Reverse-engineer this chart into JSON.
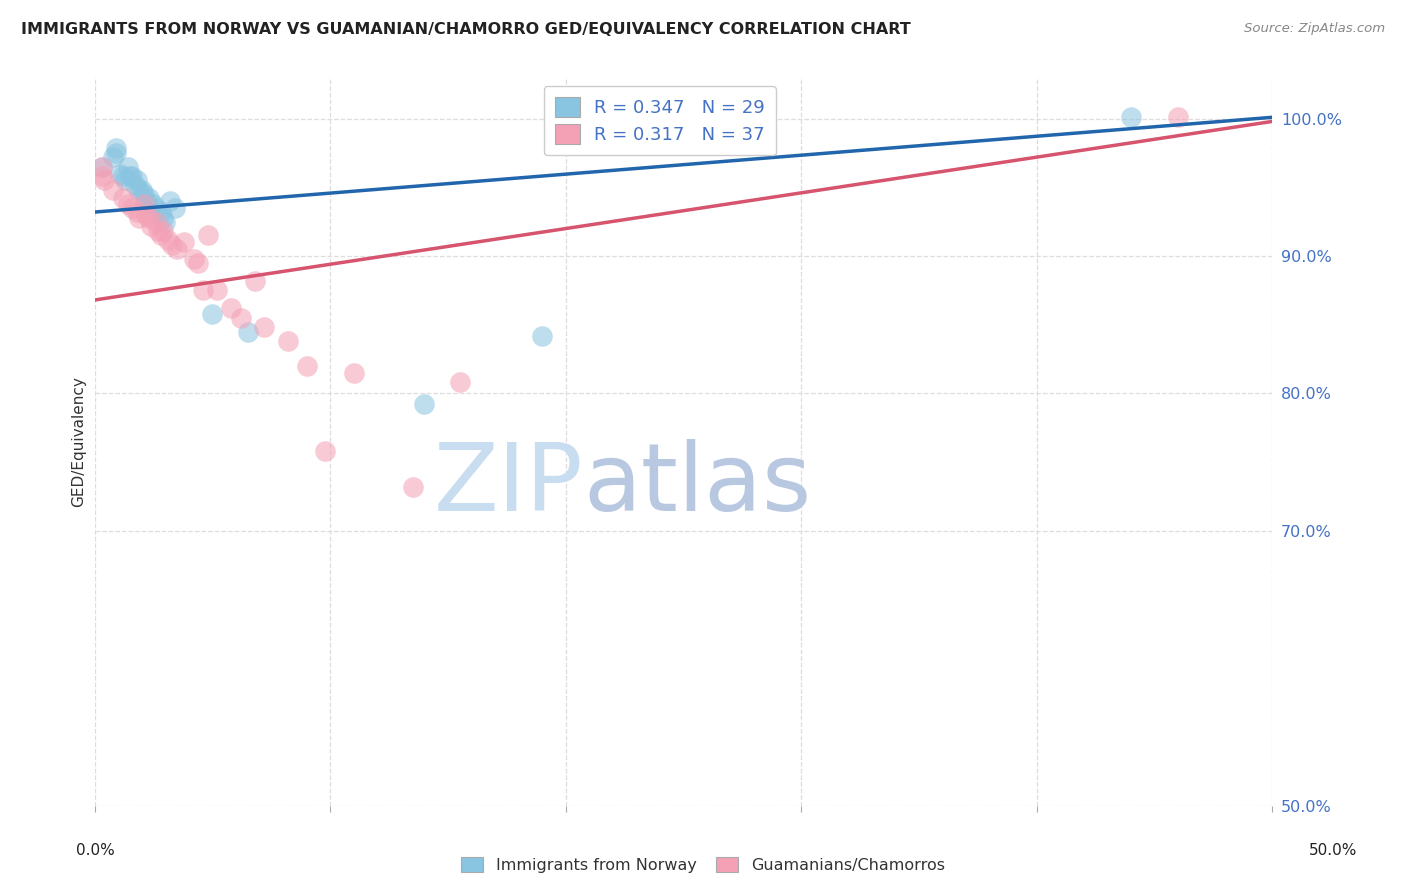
{
  "title": "IMMIGRANTS FROM NORWAY VS GUAMANIAN/CHAMORRO GED/EQUIVALENCY CORRELATION CHART",
  "source": "Source: ZipAtlas.com",
  "ylabel": "GED/Equivalency",
  "y_ticks_right": [
    "100.0%",
    "90.0%",
    "80.0%",
    "70.0%",
    "50.0%"
  ],
  "y_tick_vals": [
    1.0,
    0.9,
    0.8,
    0.7,
    0.5
  ],
  "xlim": [
    0.0,
    0.5
  ],
  "ylim": [
    0.5,
    1.03
  ],
  "r_blue": 0.347,
  "n_blue": 29,
  "r_pink": 0.317,
  "n_pink": 37,
  "blue_color": "#89c4e1",
  "pink_color": "#f4a0b5",
  "blue_line_color": "#2166ac",
  "pink_line_color": "#d6546e",
  "text_color": "#4472c4",
  "watermark_zip_color": "#c8ddf0",
  "watermark_atlas_color": "#b8c8e0",
  "blue_scatter_x": [
    0.003,
    0.008,
    0.009,
    0.009,
    0.011,
    0.012,
    0.013,
    0.014,
    0.015,
    0.016,
    0.017,
    0.018,
    0.019,
    0.02,
    0.021,
    0.022,
    0.023,
    0.025,
    0.026,
    0.028,
    0.029,
    0.03,
    0.032,
    0.034,
    0.05,
    0.065,
    0.14,
    0.19,
    0.44
  ],
  "blue_scatter_y": [
    0.965,
    0.972,
    0.979,
    0.975,
    0.96,
    0.958,
    0.955,
    0.965,
    0.958,
    0.958,
    0.952,
    0.955,
    0.948,
    0.948,
    0.945,
    0.94,
    0.942,
    0.938,
    0.935,
    0.932,
    0.928,
    0.925,
    0.94,
    0.935,
    0.858,
    0.845,
    0.792,
    0.842,
    1.001
  ],
  "pink_scatter_x": [
    0.003,
    0.003,
    0.004,
    0.008,
    0.012,
    0.014,
    0.016,
    0.018,
    0.019,
    0.021,
    0.022,
    0.023,
    0.024,
    0.026,
    0.027,
    0.028,
    0.029,
    0.031,
    0.033,
    0.035,
    0.038,
    0.042,
    0.044,
    0.046,
    0.048,
    0.052,
    0.058,
    0.062,
    0.068,
    0.072,
    0.082,
    0.09,
    0.098,
    0.11,
    0.135,
    0.155,
    0.46
  ],
  "pink_scatter_y": [
    0.965,
    0.958,
    0.955,
    0.948,
    0.942,
    0.938,
    0.935,
    0.932,
    0.928,
    0.938,
    0.93,
    0.928,
    0.922,
    0.925,
    0.918,
    0.915,
    0.918,
    0.912,
    0.908,
    0.905,
    0.91,
    0.898,
    0.895,
    0.875,
    0.915,
    0.875,
    0.862,
    0.855,
    0.882,
    0.848,
    0.838,
    0.82,
    0.758,
    0.815,
    0.732,
    0.808,
    1.001
  ],
  "blue_line_x0": 0.0,
  "blue_line_y0": 0.932,
  "blue_line_x1": 0.5,
  "blue_line_y1": 1.001,
  "pink_line_x0": 0.0,
  "pink_line_y0": 0.868,
  "pink_line_x1": 0.5,
  "pink_line_y1": 0.998,
  "grid_color": "#dddddd",
  "grid_style": "--"
}
